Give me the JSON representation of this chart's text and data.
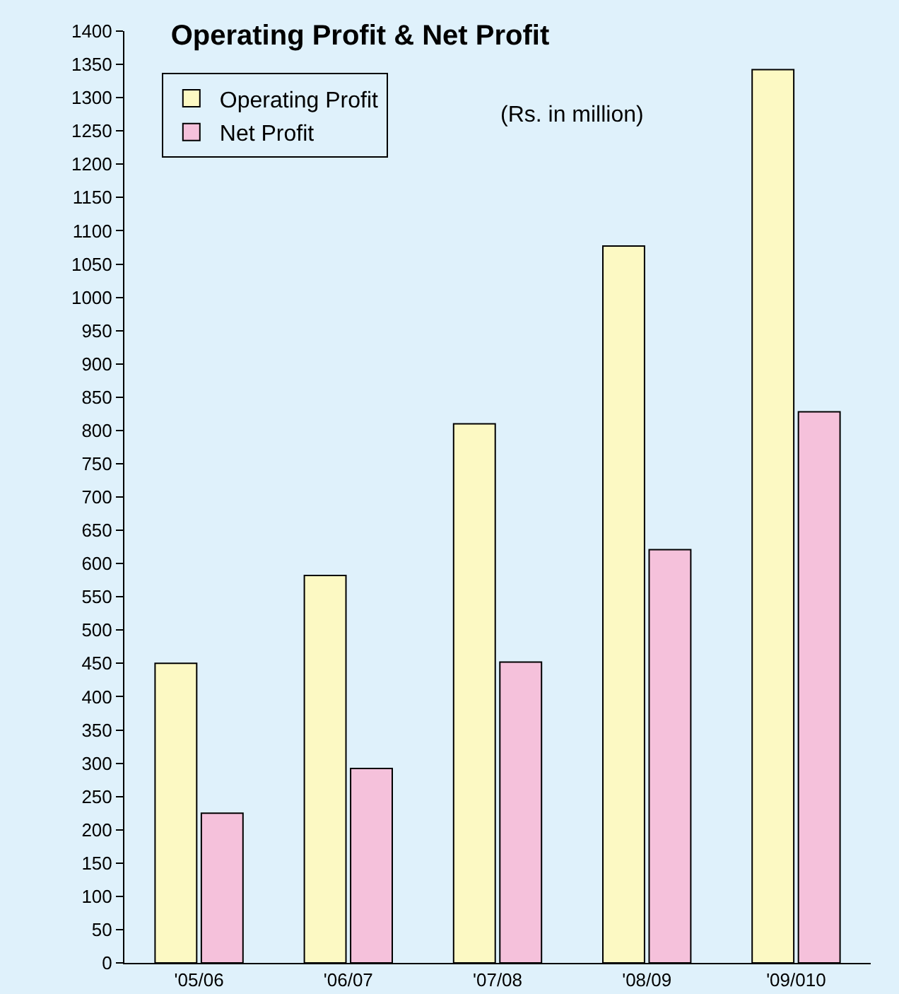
{
  "chart_data": {
    "type": "bar",
    "title": "Operating Profit & Net Profit",
    "annotations": [
      "(Rs. in million)"
    ],
    "categories": [
      "'05/06",
      "'06/07",
      "'07/08",
      "'08/09",
      "'09/010"
    ],
    "series": [
      {
        "name": "Operating Profit",
        "color": "#fcf9c3",
        "values": [
          450,
          582,
          810,
          1077,
          1342
        ]
      },
      {
        "name": "Net Profit",
        "color": "#f5c1db",
        "values": [
          225,
          292,
          452,
          621,
          828
        ]
      }
    ],
    "ylim": [
      0,
      1400
    ],
    "yticks": [
      0,
      50,
      100,
      150,
      200,
      250,
      300,
      350,
      400,
      450,
      500,
      550,
      600,
      650,
      700,
      750,
      800,
      850,
      900,
      950,
      1000,
      1050,
      1100,
      1150,
      1200,
      1250,
      1300,
      1350,
      1400
    ],
    "grid": false,
    "legend": "top left"
  }
}
